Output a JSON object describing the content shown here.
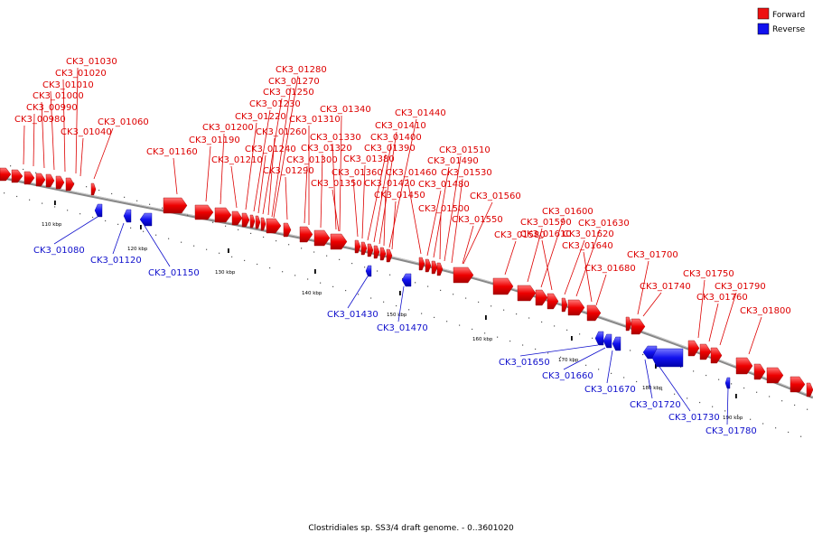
{
  "legend": {
    "forward_label": "Forward",
    "reverse_label": "Reverse",
    "forward_color": "#ee1111",
    "reverse_color": "#1111ee"
  },
  "caption": "Clostridiales sp. SS3/4 draft genome. - 0..3601020",
  "ticks": [
    "110 kbp",
    "120 kbp",
    "130 kbp",
    "140 kbp",
    "150 kbp",
    "160 kbp",
    "170 kbp",
    "180 kbp",
    "190 kbp"
  ],
  "forward_genes": [
    "CK3_00980",
    "CK3_00990",
    "CK3_01000",
    "CK3_01010",
    "CK3_01020",
    "CK3_01030",
    "CK3_01040",
    "CK3_01060",
    "CK3_01160",
    "CK3_01190",
    "CK3_01200",
    "CK3_01210",
    "CK3_01220",
    "CK3_01230",
    "CK3_01240",
    "CK3_01250",
    "CK3_01260",
    "CK3_01270",
    "CK3_01280",
    "CK3_01290",
    "CK3_01300",
    "CK3_01310",
    "CK3_01320",
    "CK3_01330",
    "CK3_01340",
    "CK3_01350",
    "CK3_01360",
    "CK3_01380",
    "CK3_01390",
    "CK3_01400",
    "CK3_01410",
    "CK3_01420",
    "CK3_01440",
    "CK3_01450",
    "CK3_01460",
    "CK3_01480",
    "CK3_01490",
    "CK3_01500",
    "CK3_01510",
    "CK3_01530",
    "CK3_01550",
    "CK3_01560",
    "CK3_01580",
    "CK3_01590",
    "CK3_01600",
    "CK3_01610",
    "CK3_01620",
    "CK3_01630",
    "CK3_01640",
    "CK3_01680",
    "CK3_01700",
    "CK3_01740",
    "CK3_01750",
    "CK3_01760",
    "CK3_01790",
    "CK3_01800"
  ],
  "reverse_genes": [
    "CK3_01080",
    "CK3_01120",
    "CK3_01150",
    "CK3_01430",
    "CK3_01470",
    "CK3_01650",
    "CK3_01660",
    "CK3_01670",
    "CK3_01720",
    "CK3_01730",
    "CK3_01780"
  ]
}
